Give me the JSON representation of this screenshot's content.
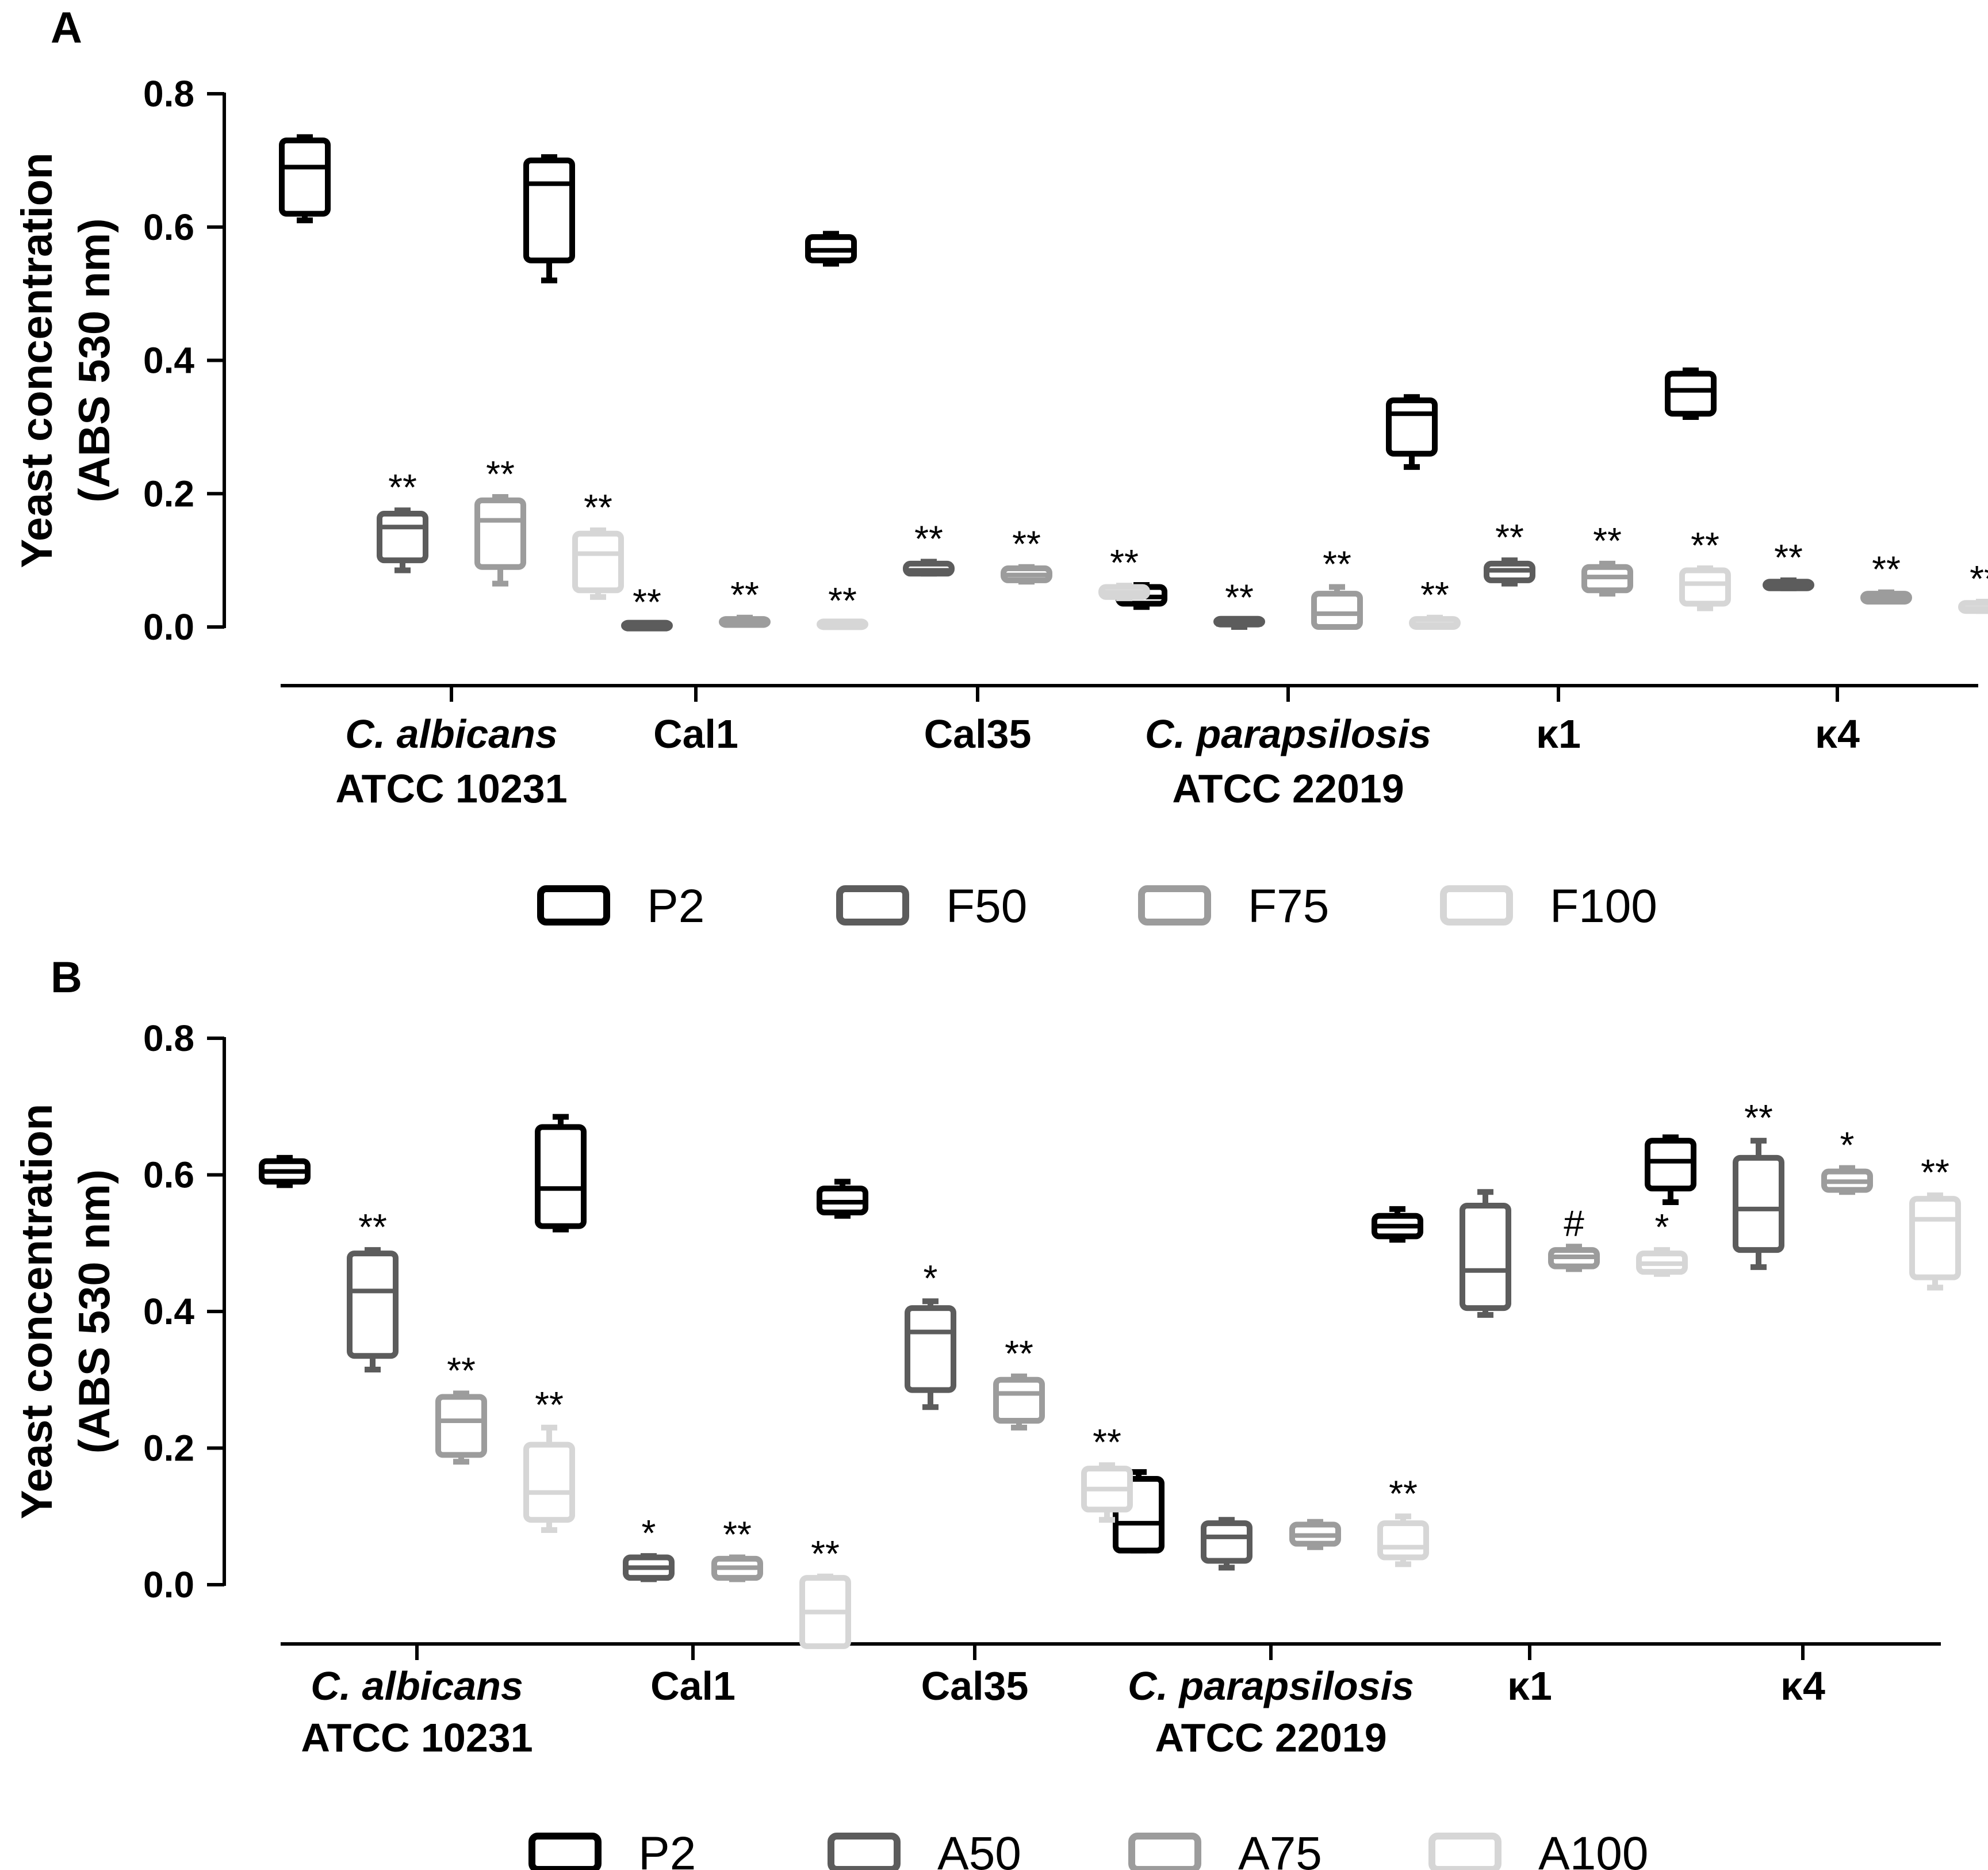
{
  "legend_colors": {
    "P2": "#000000",
    "F50": "#5c5c5c",
    "F75": "#9c9c9c",
    "F100": "#d6d6d6",
    "A50": "#5c5c5c",
    "A75": "#9c9c9c",
    "A100": "#d6d6d6"
  },
  "chart_data": [
    {
      "panel": "A",
      "type": "box",
      "ylabel_line1": "Yeast concentration",
      "ylabel_line2": "(ABS 530 nm)",
      "ylim": [
        0.0,
        0.8
      ],
      "yticks": [
        "0.0",
        "0.2",
        "0.4",
        "0.6",
        "0.8"
      ],
      "groups": [
        {
          "label": "C. albicans",
          "label2": "ATCC 10231",
          "italic": true
        },
        {
          "label": "Cal1"
        },
        {
          "label": "Cal35"
        },
        {
          "label": "C. parapsilosis",
          "label2": "ATCC 22019",
          "italic": true
        },
        {
          "label": "κ1"
        },
        {
          "label": "κ4"
        }
      ],
      "series": [
        {
          "name": "P2",
          "boxes": [
            {
              "min": 0.61,
              "q1": 0.62,
              "median": 0.69,
              "q3": 0.73,
              "max": 0.735,
              "sig": ""
            },
            {
              "min": 0.52,
              "q1": 0.55,
              "median": 0.665,
              "q3": 0.7,
              "max": 0.705,
              "sig": ""
            },
            {
              "min": 0.545,
              "q1": 0.55,
              "median": 0.565,
              "q3": 0.585,
              "max": 0.59,
              "sig": ""
            },
            {
              "min": 0.03,
              "q1": 0.035,
              "median": 0.045,
              "q3": 0.06,
              "max": 0.063,
              "sig": ""
            },
            {
              "min": 0.24,
              "q1": 0.26,
              "median": 0.32,
              "q3": 0.34,
              "max": 0.345,
              "sig": ""
            },
            {
              "min": 0.315,
              "q1": 0.32,
              "median": 0.355,
              "q3": 0.38,
              "max": 0.385,
              "sig": ""
            }
          ]
        },
        {
          "name": "F50",
          "boxes": [
            {
              "min": 0.085,
              "q1": 0.1,
              "median": 0.15,
              "q3": 0.17,
              "max": 0.175,
              "sig": "**"
            },
            {
              "min": 0.0,
              "q1": 0.0,
              "median": 0.001,
              "q3": 0.002,
              "max": 0.003,
              "sig": "**"
            },
            {
              "min": 0.08,
              "q1": 0.08,
              "median": 0.085,
              "q3": 0.095,
              "max": 0.098,
              "sig": "**"
            },
            {
              "min": 0.0,
              "q1": 0.0,
              "median": 0.004,
              "q3": 0.008,
              "max": 0.01,
              "sig": "**"
            },
            {
              "min": 0.065,
              "q1": 0.07,
              "median": 0.085,
              "q3": 0.095,
              "max": 0.1,
              "sig": "**"
            },
            {
              "min": 0.058,
              "q1": 0.058,
              "median": 0.062,
              "q3": 0.068,
              "max": 0.07,
              "sig": "**"
            }
          ]
        },
        {
          "name": "F75",
          "boxes": [
            {
              "min": 0.065,
              "q1": 0.09,
              "median": 0.16,
              "q3": 0.19,
              "max": 0.195,
              "sig": "**"
            },
            {
              "min": 0.003,
              "q1": 0.003,
              "median": 0.007,
              "q3": 0.012,
              "max": 0.014,
              "sig": "**"
            },
            {
              "min": 0.068,
              "q1": 0.07,
              "median": 0.078,
              "q3": 0.088,
              "max": 0.09,
              "sig": "**"
            },
            {
              "min": 0.0,
              "q1": 0.0,
              "median": 0.02,
              "q3": 0.05,
              "max": 0.06,
              "sig": "**"
            },
            {
              "min": 0.05,
              "q1": 0.055,
              "median": 0.075,
              "q3": 0.09,
              "max": 0.095,
              "sig": "**"
            },
            {
              "min": 0.038,
              "q1": 0.038,
              "median": 0.043,
              "q3": 0.05,
              "max": 0.052,
              "sig": "**"
            }
          ]
        },
        {
          "name": "F100",
          "boxes": [
            {
              "min": 0.045,
              "q1": 0.055,
              "median": 0.11,
              "q3": 0.14,
              "max": 0.145,
              "sig": "**"
            },
            {
              "min": 0.0,
              "q1": 0.0,
              "median": 0.002,
              "q3": 0.004,
              "max": 0.005,
              "sig": "**"
            },
            {
              "min": 0.043,
              "q1": 0.045,
              "median": 0.052,
              "q3": 0.06,
              "max": 0.062,
              "sig": "**"
            },
            {
              "min": 0.0,
              "q1": 0.0,
              "median": 0.004,
              "q3": 0.012,
              "max": 0.014,
              "sig": "**"
            },
            {
              "min": 0.028,
              "q1": 0.035,
              "median": 0.065,
              "q3": 0.085,
              "max": 0.088,
              "sig": "**"
            },
            {
              "min": 0.024,
              "q1": 0.024,
              "median": 0.028,
              "q3": 0.036,
              "max": 0.038,
              "sig": "**"
            }
          ]
        }
      ]
    },
    {
      "panel": "B",
      "type": "box",
      "ylabel_line1": "Yeast concentration",
      "ylabel_line2": "(ABS 530 nm)",
      "ylim": [
        0.0,
        0.8
      ],
      "yticks": [
        "0.0",
        "0.2",
        "0.4",
        "0.6",
        "0.8"
      ],
      "groups": [
        {
          "label": "C. albicans",
          "label2": "ATCC 10231",
          "italic": true
        },
        {
          "label": "Cal1"
        },
        {
          "label": "Cal35"
        },
        {
          "label": "C. parapsilosis",
          "label2": "ATCC 22019",
          "italic": true
        },
        {
          "label": "κ1"
        },
        {
          "label": "κ4"
        }
      ],
      "series": [
        {
          "name": "P2",
          "boxes": [
            {
              "min": 0.585,
              "q1": 0.59,
              "median": 0.605,
              "q3": 0.62,
              "max": 0.625,
              "sig": ""
            },
            {
              "min": 0.52,
              "q1": 0.525,
              "median": 0.58,
              "q3": 0.67,
              "max": 0.685,
              "sig": ""
            },
            {
              "min": 0.54,
              "q1": 0.545,
              "median": 0.56,
              "q3": 0.58,
              "max": 0.59,
              "sig": ""
            },
            {
              "min": 0.05,
              "q1": 0.05,
              "median": 0.09,
              "q3": 0.155,
              "max": 0.165,
              "sig": ""
            },
            {
              "min": 0.505,
              "q1": 0.51,
              "median": 0.525,
              "q3": 0.54,
              "max": 0.55,
              "sig": ""
            },
            {
              "min": 0.56,
              "q1": 0.58,
              "median": 0.62,
              "q3": 0.65,
              "max": 0.655,
              "sig": ""
            }
          ]
        },
        {
          "name": "A50",
          "boxes": [
            {
              "min": 0.315,
              "q1": 0.335,
              "median": 0.43,
              "q3": 0.485,
              "max": 0.49,
              "sig": "**"
            },
            {
              "min": 0.008,
              "q1": 0.01,
              "median": 0.025,
              "q3": 0.04,
              "max": 0.042,
              "sig": "*"
            },
            {
              "min": 0.26,
              "q1": 0.285,
              "median": 0.37,
              "q3": 0.405,
              "max": 0.415,
              "sig": "*"
            },
            {
              "min": 0.025,
              "q1": 0.035,
              "median": 0.07,
              "q3": 0.09,
              "max": 0.095,
              "sig": ""
            },
            {
              "min": 0.395,
              "q1": 0.405,
              "median": 0.46,
              "q3": 0.555,
              "max": 0.575,
              "sig": ""
            },
            {
              "min": 0.465,
              "q1": 0.49,
              "median": 0.55,
              "q3": 0.625,
              "max": 0.65,
              "sig": "**"
            }
          ]
        },
        {
          "name": "A75",
          "boxes": [
            {
              "min": 0.18,
              "q1": 0.19,
              "median": 0.24,
              "q3": 0.275,
              "max": 0.28,
              "sig": "**"
            },
            {
              "min": 0.008,
              "q1": 0.01,
              "median": 0.025,
              "q3": 0.038,
              "max": 0.04,
              "sig": "**"
            },
            {
              "min": 0.23,
              "q1": 0.24,
              "median": 0.28,
              "q3": 0.3,
              "max": 0.305,
              "sig": "**"
            },
            {
              "min": 0.055,
              "q1": 0.06,
              "median": 0.072,
              "q3": 0.088,
              "max": 0.092,
              "sig": ""
            },
            {
              "min": 0.462,
              "q1": 0.466,
              "median": 0.48,
              "q3": 0.49,
              "max": 0.495,
              "sig": "#"
            },
            {
              "min": 0.575,
              "q1": 0.578,
              "median": 0.59,
              "q3": 0.605,
              "max": 0.61,
              "sig": "*"
            }
          ]
        },
        {
          "name": "A100",
          "boxes": [
            {
              "min": 0.08,
              "q1": 0.095,
              "median": 0.135,
              "q3": 0.205,
              "max": 0.23,
              "sig": "**"
            },
            {
              "min": -0.09,
              "q1": -0.09,
              "median": -0.04,
              "q3": 0.01,
              "max": 0.012,
              "sig": "**"
            },
            {
              "min": 0.095,
              "q1": 0.11,
              "median": 0.14,
              "q3": 0.17,
              "max": 0.175,
              "sig": "**"
            },
            {
              "min": 0.03,
              "q1": 0.04,
              "median": 0.055,
              "q3": 0.09,
              "max": 0.1,
              "sig": "**"
            },
            {
              "min": 0.455,
              "q1": 0.458,
              "median": 0.47,
              "q3": 0.485,
              "max": 0.49,
              "sig": "*"
            },
            {
              "min": 0.435,
              "q1": 0.45,
              "median": 0.535,
              "q3": 0.565,
              "max": 0.57,
              "sig": "**"
            }
          ]
        }
      ]
    }
  ]
}
